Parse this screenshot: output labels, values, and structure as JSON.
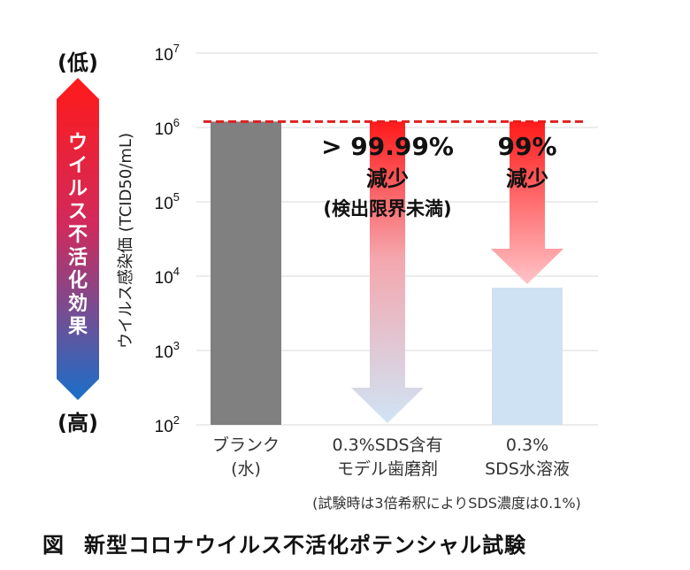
{
  "chart_data": {
    "type": "bar",
    "yscale": "log",
    "ylim": [
      100,
      10000000
    ],
    "ylabel": "ウイルス感染価 (TCID50/mL)",
    "y_ticks": [
      {
        "value": 100,
        "base": "10",
        "exp": "2"
      },
      {
        "value": 1000,
        "base": "10",
        "exp": "3"
      },
      {
        "value": 10000,
        "base": "10",
        "exp": "4"
      },
      {
        "value": 100000,
        "base": "10",
        "exp": "5"
      },
      {
        "value": 1000000,
        "base": "10",
        "exp": "6"
      },
      {
        "value": 10000000,
        "base": "10",
        "exp": "7"
      }
    ],
    "categories": [
      {
        "lines": [
          "ブランク",
          "(水)"
        ]
      },
      {
        "lines": [
          "0.3%SDS含有",
          "モデル歯磨剤"
        ]
      },
      {
        "lines": [
          "0.3%",
          "SDS水溶液"
        ]
      }
    ],
    "values": [
      1200000,
      100,
      7000
    ],
    "bar_colors": [
      "#808080",
      "#ffffff",
      "#cfe2f3"
    ],
    "reference_value": 1200000,
    "reduction_arrows": [
      {
        "lines": [
          "> 99.99%",
          "減少",
          "(検出限界未満)"
        ]
      },
      {
        "lines": [
          "99%",
          "減少"
        ]
      }
    ],
    "side_scale": {
      "top": "(低)",
      "bottom": "(高)",
      "label": "ウイルス不活化効果"
    },
    "note": "(試験時は3倍希釈によりSDS濃度は0.1%)"
  },
  "caption": {
    "figure": "図",
    "title": "新型コロナウイルス不活化ポテンシャル試験"
  },
  "colors": {
    "arrow_top": "#ff1a1a",
    "arrow_bottom": "#cfe4f5",
    "reference_line": "#e02020",
    "side_top": "#ff1a1a",
    "side_bottom": "#1a6fc9",
    "grid": "#d9d9d9"
  }
}
